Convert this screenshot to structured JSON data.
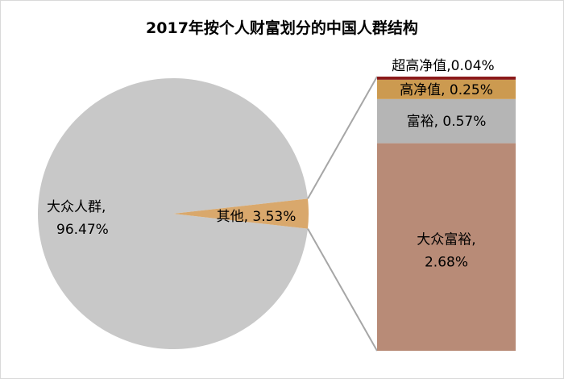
{
  "chart_data": {
    "type": "pie",
    "title": "2017年按个人财富划分的中国人群结构",
    "pie": {
      "slices": [
        {
          "label": "大众人群,",
          "label2": "96.47%",
          "value": 96.47,
          "color": "#c8c8c8"
        },
        {
          "label": "其他,",
          "label2": "3.53%",
          "value": 3.53,
          "color": "#d9a86c"
        }
      ]
    },
    "breakdown": {
      "of": "其他",
      "segments": [
        {
          "label": "大众富裕,",
          "label2": "2.68%",
          "value": 2.68,
          "color": "#b88b77"
        },
        {
          "label": "富裕,",
          "label2": "0.57%",
          "value": 0.57,
          "color": "#b5b5b5"
        },
        {
          "label": "高净值,",
          "label2": "0.25%",
          "value": 0.25,
          "color": "#cc9a50"
        },
        {
          "label": "超高净值,",
          "label2": "0.04%",
          "value": 0.04,
          "color": "#8b1a1a"
        }
      ]
    }
  }
}
